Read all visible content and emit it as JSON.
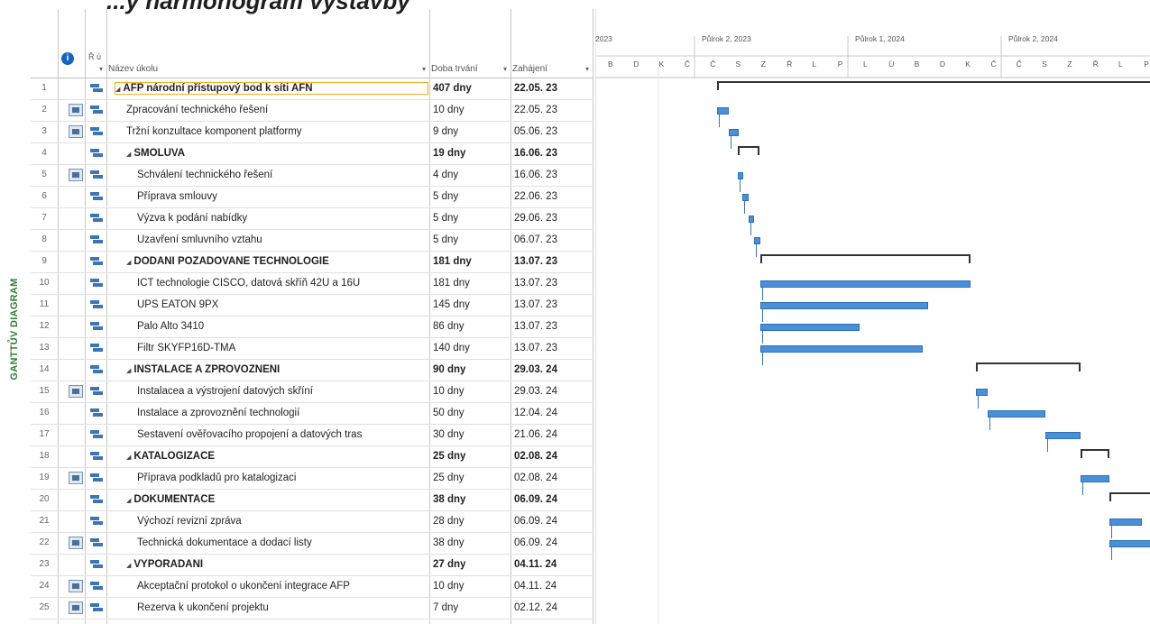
{
  "title": "...ý harmonogram výstavby",
  "side_label": "GANTTŮV DIAGRAM",
  "headers": {
    "info_icon": "i",
    "mode": "Ř ú",
    "name": "Název úkolu",
    "duration": "Doba trvání",
    "start": "Zahájení"
  },
  "timescale": {
    "halves": [
      "2023",
      "Půlrok 2, 2023",
      "Půlrok 1, 2024",
      "Půlrok 2, 2024"
    ],
    "months": [
      "B",
      "D",
      "K",
      "Č",
      "Č",
      "S",
      "Z",
      "Ř",
      "L",
      "P",
      "L",
      "Ú",
      "B",
      "D",
      "K",
      "Č",
      "Č",
      "S",
      "Z",
      "Ř",
      "L",
      "P"
    ]
  },
  "tasks": [
    {
      "id": "1",
      "name": "AFP národní přístupový bod k síti AFN",
      "duration": "407 dny",
      "start": "22.05. 23",
      "level": 0,
      "summary": true,
      "indicator": false,
      "selected": true
    },
    {
      "id": "2",
      "name": "Zpracování technického řešení",
      "duration": "10 dny",
      "start": "22.05. 23",
      "level": 1,
      "summary": false,
      "indicator": true
    },
    {
      "id": "3",
      "name": "Tržní konzultace komponent platformy",
      "duration": "9 dny",
      "start": "05.06. 23",
      "level": 1,
      "summary": false,
      "indicator": true
    },
    {
      "id": "4",
      "name": "SMOLUVA",
      "duration": "19 dny",
      "start": "16.06. 23",
      "level": 1,
      "summary": true,
      "indicator": false
    },
    {
      "id": "5",
      "name": "Schválení technického řešení",
      "duration": "4 dny",
      "start": "16.06. 23",
      "level": 2,
      "summary": false,
      "indicator": true
    },
    {
      "id": "6",
      "name": "Příprava smlouvy",
      "duration": "5 dny",
      "start": "22.06. 23",
      "level": 2,
      "summary": false,
      "indicator": false
    },
    {
      "id": "7",
      "name": "Výzva k podání nabídky",
      "duration": "5 dny",
      "start": "29.06. 23",
      "level": 2,
      "summary": false,
      "indicator": false
    },
    {
      "id": "8",
      "name": "Uzavření smluvního vztahu",
      "duration": "5 dny",
      "start": "06.07. 23",
      "level": 2,
      "summary": false,
      "indicator": false
    },
    {
      "id": "9",
      "name": "DODÁNÍ POŽADOVANÉ TECHNOLOGIE",
      "duration": "181 dny",
      "start": "13.07. 23",
      "level": 1,
      "summary": true,
      "indicator": false
    },
    {
      "id": "10",
      "name": "ICT technologie CISCO, datová skříň 42U a 16U",
      "duration": "181 dny",
      "start": "13.07. 23",
      "level": 2,
      "summary": false,
      "indicator": false
    },
    {
      "id": "11",
      "name": "UPS EATON 9PX",
      "duration": "145 dny",
      "start": "13.07. 23",
      "level": 2,
      "summary": false,
      "indicator": false
    },
    {
      "id": "12",
      "name": "Palo Alto 3410",
      "duration": "86 dny",
      "start": "13.07. 23",
      "level": 2,
      "summary": false,
      "indicator": false
    },
    {
      "id": "13",
      "name": "Filtr SKYFP16D-TMA",
      "duration": "140 dny",
      "start": "13.07. 23",
      "level": 2,
      "summary": false,
      "indicator": false
    },
    {
      "id": "14",
      "name": "INSTALACE A ZPROVOZNĚNÍ",
      "duration": "90 dny",
      "start": "29.03. 24",
      "level": 1,
      "summary": true,
      "indicator": false
    },
    {
      "id": "15",
      "name": "Instalacea a výstrojení datových skříní",
      "duration": "10 dny",
      "start": "29.03. 24",
      "level": 2,
      "summary": false,
      "indicator": true
    },
    {
      "id": "16",
      "name": "Instalace a zprovoznění technologií",
      "duration": "50 dny",
      "start": "12.04. 24",
      "level": 2,
      "summary": false,
      "indicator": false
    },
    {
      "id": "17",
      "name": "Sestavení ověřovacího propojení a datových tras",
      "duration": "30 dny",
      "start": "21.06. 24",
      "level": 2,
      "summary": false,
      "indicator": false
    },
    {
      "id": "18",
      "name": "KATALOGIZACE",
      "duration": "25 dny",
      "start": "02.08. 24",
      "level": 1,
      "summary": true,
      "indicator": false
    },
    {
      "id": "19",
      "name": "Příprava podkladů pro katalogizaci",
      "duration": "25 dny",
      "start": "02.08. 24",
      "level": 2,
      "summary": false,
      "indicator": true
    },
    {
      "id": "20",
      "name": "DOKUMENTACE",
      "duration": "38 dny",
      "start": "06.09. 24",
      "level": 1,
      "summary": true,
      "indicator": false
    },
    {
      "id": "21",
      "name": "Výchozí revizní zpráva",
      "duration": "28 dny",
      "start": "06.09. 24",
      "level": 2,
      "summary": false,
      "indicator": false
    },
    {
      "id": "22",
      "name": "Technická dokumentace a dodací listy",
      "duration": "38 dny",
      "start": "06.09. 24",
      "level": 2,
      "summary": false,
      "indicator": true
    },
    {
      "id": "23",
      "name": "VYPOŘÁDÁNÍ",
      "duration": "27 dny",
      "start": "04.11. 24",
      "level": 1,
      "summary": true,
      "indicator": false
    },
    {
      "id": "24",
      "name": "Akceptační protokol o ukončení  integrace AFP",
      "duration": "10 dny",
      "start": "04.11. 24",
      "level": 2,
      "summary": false,
      "indicator": true
    },
    {
      "id": "25",
      "name": "Rezerva k ukončení projektu",
      "duration": "7 dny",
      "start": "02.12. 24",
      "level": 2,
      "summary": false,
      "indicator": true
    }
  ],
  "colors": {
    "bar": "#4a90d9",
    "summary": "#333333",
    "label": "#2e7d32"
  }
}
